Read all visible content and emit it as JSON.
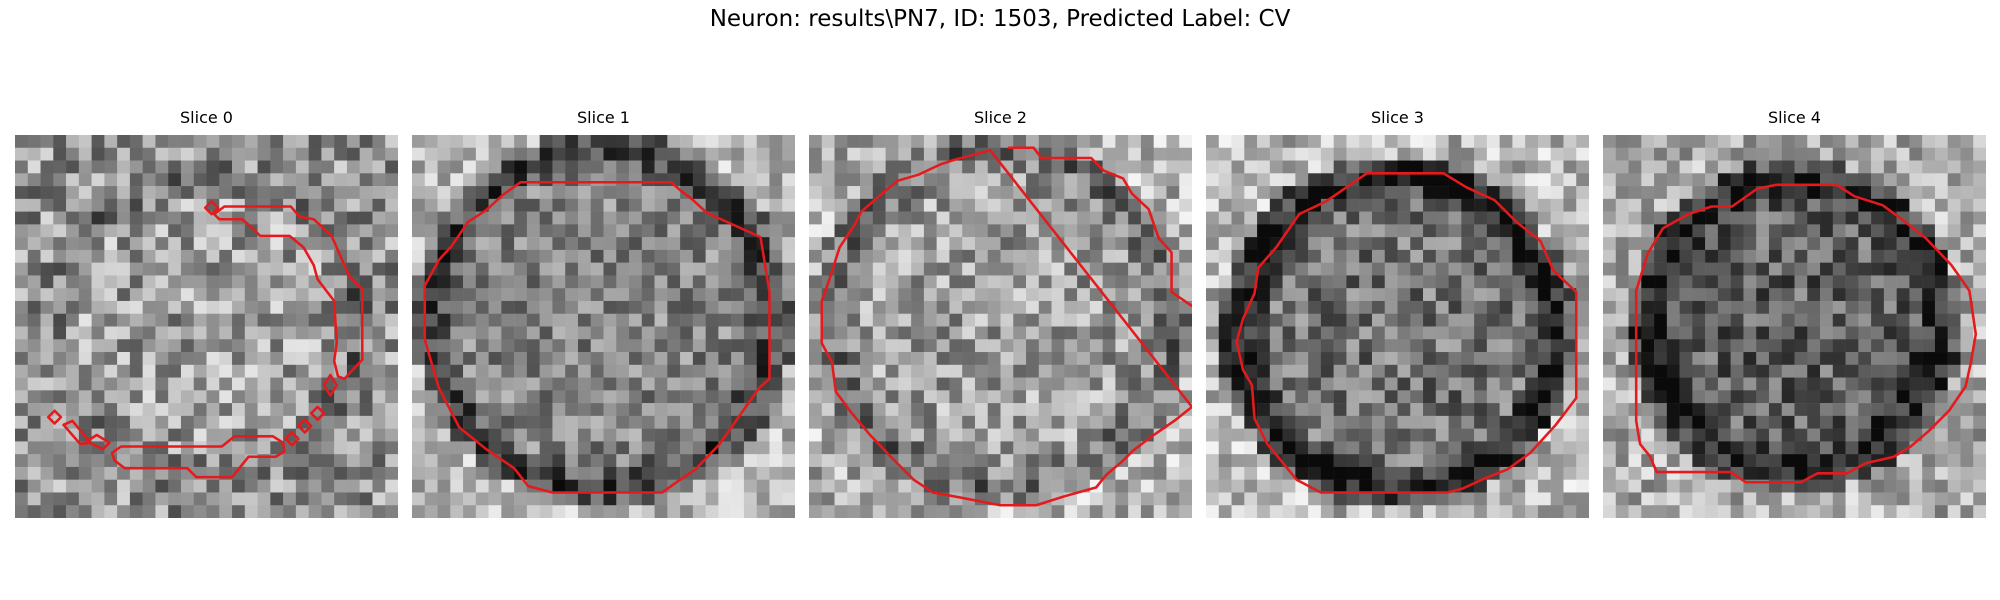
{
  "figure": {
    "title": "Neuron: results\\PN7, ID: 1503, Predicted Label: CV"
  },
  "panels": [
    {
      "title": "Slice 0"
    },
    {
      "title": "Slice 1"
    },
    {
      "title": "Slice 2"
    },
    {
      "title": "Slice 3"
    },
    {
      "title": "Slice 4"
    }
  ],
  "colors": {
    "contour": "#e41a1c",
    "background": "#ffffff"
  }
}
